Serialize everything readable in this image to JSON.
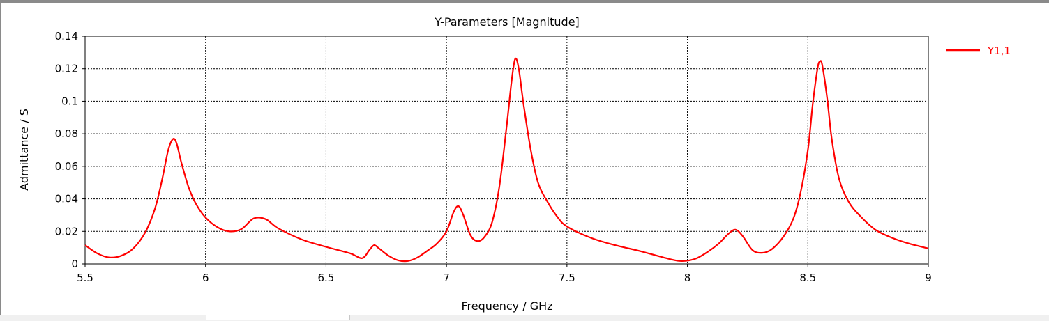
{
  "chart_data": {
    "type": "line",
    "title": "Y-Parameters [Magnitude]",
    "xlabel": "Frequency / GHz",
    "ylabel": "Admittance / S",
    "xlim": [
      5.5,
      9
    ],
    "ylim": [
      0,
      0.14
    ],
    "xticks": [
      "5.5",
      "6",
      "6.5",
      "7",
      "7.5",
      "8",
      "8.5",
      "9"
    ],
    "yticks": [
      "0",
      "0.02",
      "0.04",
      "0.06",
      "0.08",
      "0.1",
      "0.12",
      "0.14"
    ],
    "grid": true,
    "legend_position": "top-right",
    "series": [
      {
        "name": "Y1,1",
        "color": "#ff0000",
        "points": [
          [
            5.5,
            0.0115
          ],
          [
            5.55,
            0.0065
          ],
          [
            5.6,
            0.004
          ],
          [
            5.65,
            0.005
          ],
          [
            5.7,
            0.0095
          ],
          [
            5.75,
            0.0195
          ],
          [
            5.79,
            0.034
          ],
          [
            5.82,
            0.052
          ],
          [
            5.845,
            0.07
          ],
          [
            5.865,
            0.0768
          ],
          [
            5.88,
            0.074
          ],
          [
            5.9,
            0.062
          ],
          [
            5.93,
            0.047
          ],
          [
            5.96,
            0.037
          ],
          [
            6.0,
            0.0285
          ],
          [
            6.05,
            0.0225
          ],
          [
            6.1,
            0.02
          ],
          [
            6.15,
            0.0215
          ],
          [
            6.2,
            0.028
          ],
          [
            6.25,
            0.0275
          ],
          [
            6.3,
            0.022
          ],
          [
            6.4,
            0.015
          ],
          [
            6.5,
            0.0105
          ],
          [
            6.6,
            0.0065
          ],
          [
            6.65,
            0.0035
          ],
          [
            6.68,
            0.0085
          ],
          [
            6.7,
            0.0115
          ],
          [
            6.72,
            0.0095
          ],
          [
            6.76,
            0.005
          ],
          [
            6.8,
            0.0022
          ],
          [
            6.84,
            0.0018
          ],
          [
            6.88,
            0.004
          ],
          [
            6.92,
            0.008
          ],
          [
            6.96,
            0.0125
          ],
          [
            7.0,
            0.02
          ],
          [
            7.03,
            0.032
          ],
          [
            7.05,
            0.0355
          ],
          [
            7.07,
            0.03
          ],
          [
            7.1,
            0.0175
          ],
          [
            7.13,
            0.014
          ],
          [
            7.16,
            0.017
          ],
          [
            7.19,
            0.026
          ],
          [
            7.22,
            0.048
          ],
          [
            7.25,
            0.085
          ],
          [
            7.27,
            0.112
          ],
          [
            7.285,
            0.126
          ],
          [
            7.3,
            0.12
          ],
          [
            7.32,
            0.098
          ],
          [
            7.35,
            0.07
          ],
          [
            7.38,
            0.05
          ],
          [
            7.42,
            0.038
          ],
          [
            7.46,
            0.029
          ],
          [
            7.5,
            0.023
          ],
          [
            7.6,
            0.016
          ],
          [
            7.7,
            0.0115
          ],
          [
            7.8,
            0.008
          ],
          [
            7.9,
            0.004
          ],
          [
            7.97,
            0.0018
          ],
          [
            8.03,
            0.003
          ],
          [
            8.08,
            0.007
          ],
          [
            8.13,
            0.0125
          ],
          [
            8.17,
            0.0185
          ],
          [
            8.2,
            0.021
          ],
          [
            8.23,
            0.017
          ],
          [
            8.27,
            0.0085
          ],
          [
            8.31,
            0.0068
          ],
          [
            8.35,
            0.009
          ],
          [
            8.4,
            0.017
          ],
          [
            8.44,
            0.028
          ],
          [
            8.47,
            0.044
          ],
          [
            8.5,
            0.07
          ],
          [
            8.52,
            0.098
          ],
          [
            8.54,
            0.12
          ],
          [
            8.55,
            0.1245
          ],
          [
            8.56,
            0.122
          ],
          [
            8.58,
            0.102
          ],
          [
            8.6,
            0.076
          ],
          [
            8.63,
            0.052
          ],
          [
            8.67,
            0.038
          ],
          [
            8.72,
            0.029
          ],
          [
            8.78,
            0.021
          ],
          [
            8.85,
            0.016
          ],
          [
            8.92,
            0.0125
          ],
          [
            9.0,
            0.0095
          ]
        ]
      }
    ]
  }
}
